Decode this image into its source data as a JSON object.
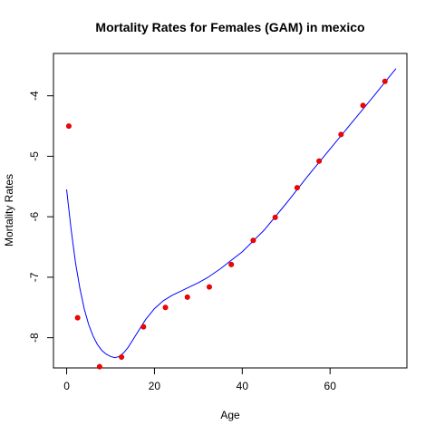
{
  "chart_data": {
    "type": "scatter",
    "title": "Mortality Rates for Females (GAM) in mexico",
    "xlabel": "Age",
    "ylabel": "Mortality Rates",
    "xlim": [
      -3.0,
      77.5
    ],
    "ylim": [
      -8.5,
      -3.3
    ],
    "x_ticks": [
      0,
      20,
      40,
      60
    ],
    "y_ticks": [
      -8,
      -7,
      -6,
      -5,
      -4
    ],
    "grid": false,
    "colors": {
      "points": "#ff0000",
      "line": "#0000ff",
      "axes": "#000000"
    },
    "observed": {
      "x": [
        0.5,
        2.5,
        7.5,
        12.5,
        17.5,
        22.5,
        27.5,
        32.5,
        37.5,
        42.5,
        47.5,
        52.5,
        57.5,
        62.5,
        67.5,
        72.5
      ],
      "y": [
        -4.5,
        -7.67,
        -8.48,
        -8.32,
        -7.82,
        -7.5,
        -7.33,
        -7.16,
        -6.79,
        -6.39,
        -6.01,
        -5.52,
        -5.08,
        -4.64,
        -4.16,
        -3.76
      ]
    },
    "fitted": {
      "x": [
        0,
        1,
        2,
        3,
        4,
        5,
        6,
        7,
        8,
        9,
        10,
        11,
        12,
        13,
        14,
        16,
        18,
        20,
        22,
        24,
        26,
        28,
        30,
        32,
        35,
        40,
        45,
        50,
        55,
        60,
        65,
        70,
        75
      ],
      "y": [
        -5.55,
        -6.2,
        -6.75,
        -7.18,
        -7.52,
        -7.78,
        -7.97,
        -8.11,
        -8.21,
        -8.27,
        -8.31,
        -8.33,
        -8.31,
        -8.25,
        -8.16,
        -7.93,
        -7.7,
        -7.52,
        -7.39,
        -7.3,
        -7.23,
        -7.16,
        -7.09,
        -7.01,
        -6.86,
        -6.58,
        -6.22,
        -5.78,
        -5.32,
        -4.88,
        -4.44,
        -4.0,
        -3.55
      ]
    }
  }
}
